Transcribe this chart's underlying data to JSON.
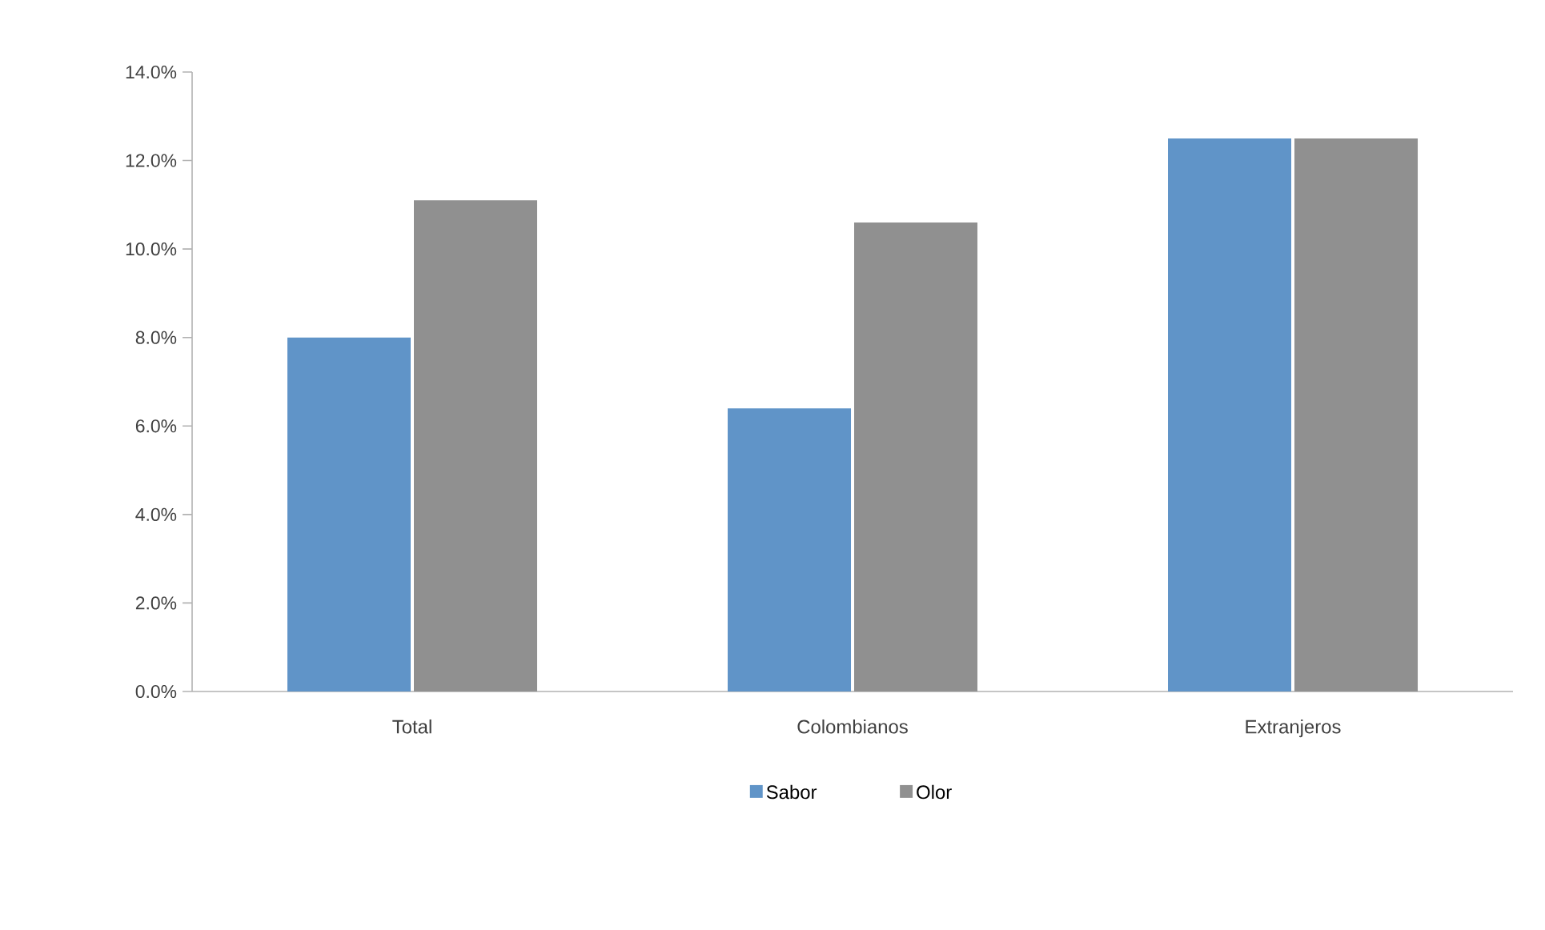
{
  "chart_data": {
    "type": "bar",
    "categories": [
      "Total",
      "Colombianos",
      "Extranjeros"
    ],
    "series": [
      {
        "name": "Sabor",
        "color": "#6094c8",
        "values": [
          8.0,
          6.4,
          12.5
        ]
      },
      {
        "name": "Olor",
        "color": "#909090",
        "values": [
          11.1,
          10.6,
          12.5
        ]
      }
    ],
    "ylim": [
      0,
      14
    ],
    "yticks": [
      {
        "value": 0,
        "label": "0.0%"
      },
      {
        "value": 2,
        "label": "2.0%"
      },
      {
        "value": 4,
        "label": "4.0%"
      },
      {
        "value": 6,
        "label": "6.0%"
      },
      {
        "value": 8,
        "label": "8.0%"
      },
      {
        "value": 10,
        "label": "10.0%"
      },
      {
        "value": 12,
        "label": "12.0%"
      },
      {
        "value": 14,
        "label": "14.0%"
      }
    ],
    "grid": false,
    "legend": "bottom"
  }
}
